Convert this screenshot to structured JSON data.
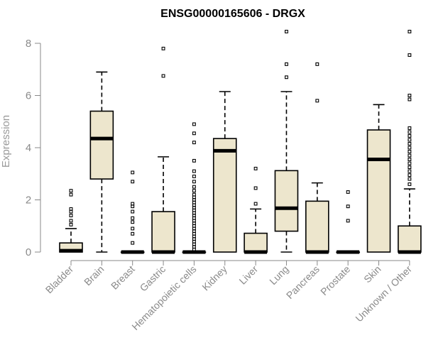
{
  "chart_data": {
    "type": "boxplot",
    "title": "ENSG00000165606 - DRGX",
    "xlabel": "",
    "ylabel": "Expression",
    "ylim": [
      0,
      8.6
    ],
    "yticks": [
      0,
      2,
      4,
      6,
      8
    ],
    "box_color": "#ede6cd",
    "categories": [
      "Bladder",
      "Brain",
      "Breast",
      "Gastric",
      "Hematopoietic cells",
      "Kidney",
      "Liver",
      "Lung",
      "Pancreas",
      "Prostate",
      "Skin",
      "Unknown / Other"
    ],
    "boxes": [
      {
        "category": "Bladder",
        "min": 0,
        "q1": 0,
        "median": 0.05,
        "q3": 0.35,
        "max": 0.9,
        "outliers": [
          1.05,
          1.2,
          1.4,
          1.55,
          1.65,
          2.2,
          2.35
        ]
      },
      {
        "category": "Brain",
        "min": 0,
        "q1": 2.8,
        "median": 4.35,
        "q3": 5.4,
        "max": 6.9,
        "outliers": []
      },
      {
        "category": "Breast",
        "min": 0,
        "q1": 0,
        "median": 0,
        "q3": 0,
        "max": 0,
        "outliers": [
          0.35,
          0.7,
          0.9,
          1.15,
          1.3,
          1.55,
          1.75,
          1.85,
          2.7,
          3.05
        ]
      },
      {
        "category": "Gastric",
        "min": 0,
        "q1": 0,
        "median": 0,
        "q3": 1.55,
        "max": 3.65,
        "outliers": [
          6.75,
          7.8
        ]
      },
      {
        "category": "Hematopoietic cells",
        "min": 0,
        "q1": 0,
        "median": 0,
        "q3": 0,
        "max": 0,
        "outliers": [
          0.1,
          0.2,
          0.3,
          0.4,
          0.5,
          0.6,
          0.7,
          0.8,
          0.9,
          1.0,
          1.1,
          1.2,
          1.3,
          1.4,
          1.5,
          1.6,
          1.7,
          1.8,
          1.9,
          2.0,
          2.1,
          2.2,
          2.35,
          2.5,
          2.7,
          2.9,
          3.1,
          3.5,
          4.2,
          4.55,
          4.9
        ]
      },
      {
        "category": "Kidney",
        "min": 0,
        "q1": 0,
        "median": 3.88,
        "q3": 4.35,
        "max": 6.15,
        "outliers": []
      },
      {
        "category": "Liver",
        "min": 0,
        "q1": 0,
        "median": 0,
        "q3": 0.72,
        "max": 1.65,
        "outliers": [
          1.85,
          2.45,
          3.2
        ]
      },
      {
        "category": "Lung",
        "min": 0,
        "q1": 0.8,
        "median": 1.68,
        "q3": 3.12,
        "max": 6.15,
        "outliers": [
          6.7,
          7.2,
          8.45
        ]
      },
      {
        "category": "Pancreas",
        "min": 0,
        "q1": 0,
        "median": 0,
        "q3": 1.95,
        "max": 2.65,
        "outliers": [
          5.8,
          7.2
        ]
      },
      {
        "category": "Prostate",
        "min": 0,
        "q1": 0,
        "median": 0,
        "q3": 0,
        "max": 0,
        "outliers": [
          1.2,
          1.75,
          2.3
        ]
      },
      {
        "category": "Skin",
        "min": 0,
        "q1": 0,
        "median": 3.55,
        "q3": 4.68,
        "max": 5.65,
        "outliers": []
      },
      {
        "category": "Unknown / Other",
        "min": 0,
        "q1": 0,
        "median": 0,
        "q3": 1.0,
        "max": 2.42,
        "outliers": [
          2.6,
          2.8,
          2.95,
          3.1,
          3.25,
          3.4,
          3.55,
          3.7,
          3.85,
          4.0,
          4.15,
          4.3,
          4.45,
          4.6,
          4.75,
          5.85,
          6.0,
          7.55,
          8.45
        ]
      }
    ]
  }
}
